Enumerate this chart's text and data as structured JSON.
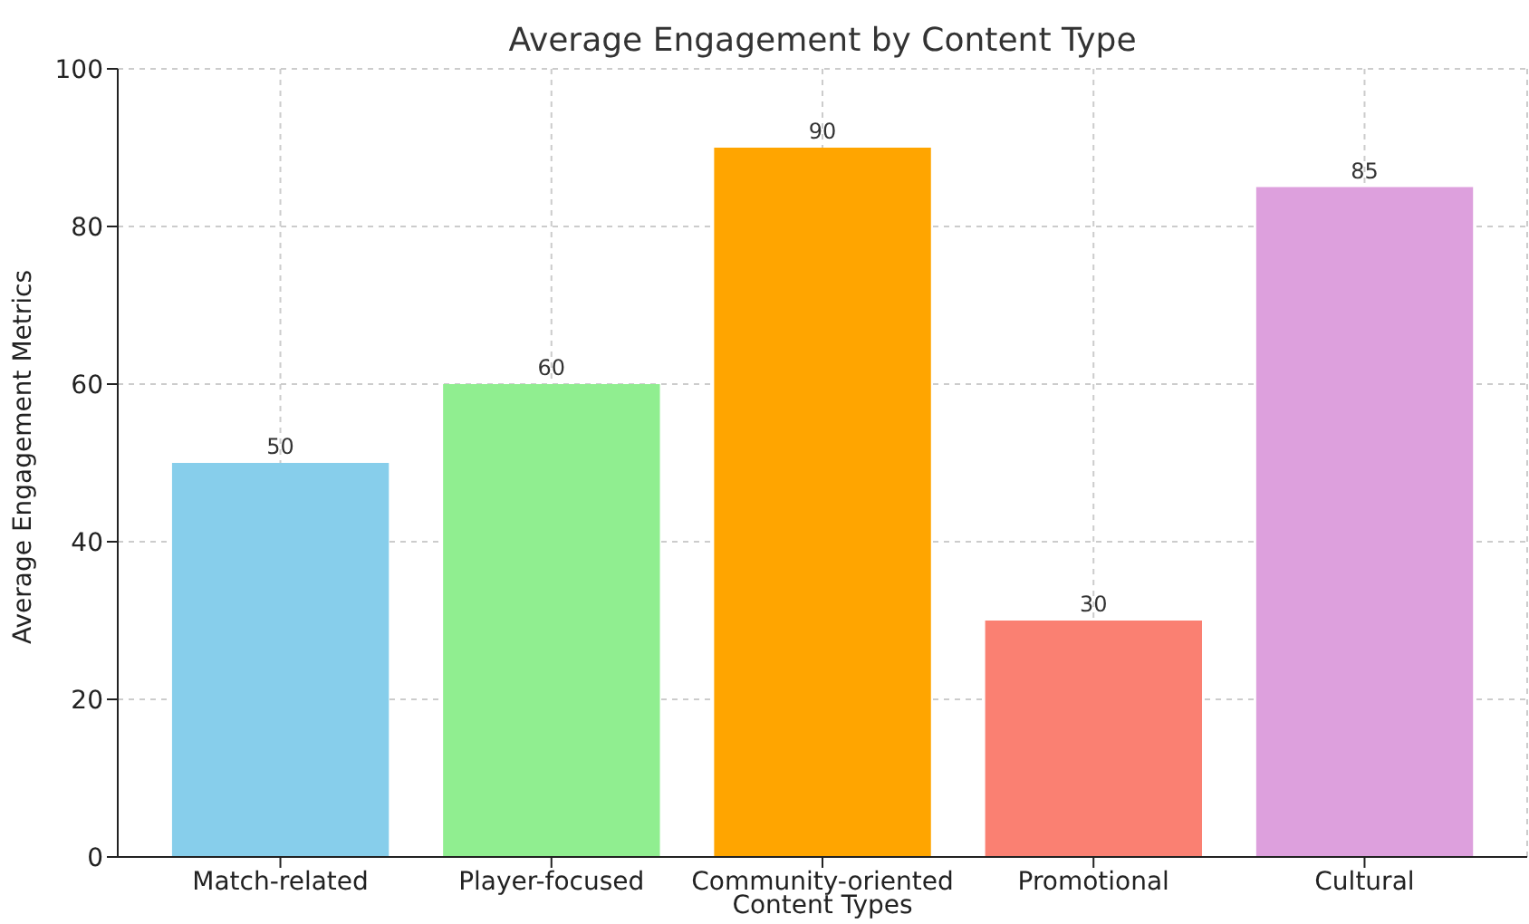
{
  "chart_data": {
    "type": "bar",
    "title": "Average Engagement by Content Type",
    "xlabel": "Content Types",
    "ylabel": "Average Engagement Metrics",
    "categories": [
      "Match-related",
      "Player-focused",
      "Community-oriented",
      "Promotional",
      "Cultural"
    ],
    "values": [
      50,
      60,
      90,
      30,
      85
    ],
    "colors": [
      "#87ceeb",
      "#90ee90",
      "#ffa500",
      "#fa8072",
      "#dda0dd"
    ],
    "ylim": [
      0,
      100
    ],
    "yticks": [
      0,
      20,
      40,
      60,
      80,
      100
    ],
    "grid": true,
    "data_labels": true
  }
}
